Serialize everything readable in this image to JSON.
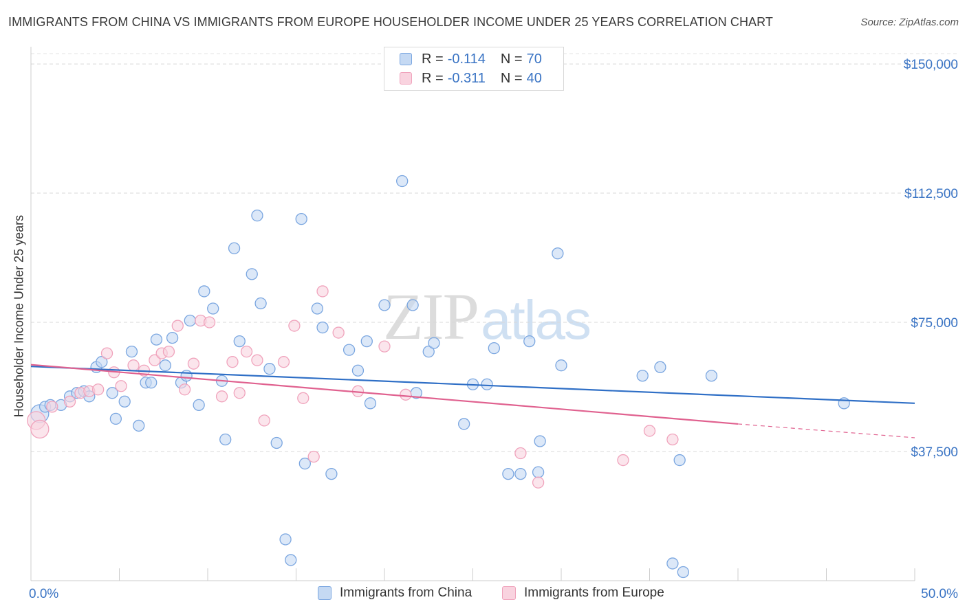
{
  "title": "IMMIGRANTS FROM CHINA VS IMMIGRANTS FROM EUROPE HOUSEHOLDER INCOME UNDER 25 YEARS CORRELATION CHART",
  "source": "Source: ZipAtlas.com",
  "watermark": {
    "zip": "ZIP",
    "atlas": "atlas"
  },
  "colors": {
    "china": "#7aa6e0",
    "china_fill": "#c5d9f3",
    "china_line": "#2f6fc6",
    "europe": "#f0a3bc",
    "europe_fill": "#f9d3df",
    "europe_line": "#e0618f",
    "tick_label": "#3a74c4"
  },
  "legend": {
    "china": {
      "r_label": "R =",
      "r_value": "-0.114",
      "n_label": "N =",
      "n_value": "70"
    },
    "europe": {
      "r_label": "R =",
      "r_value": "-0.311",
      "n_label": "N =",
      "n_value": "40"
    }
  },
  "bottom_legend": {
    "china": "Immigrants from China",
    "europe": "Immigrants from Europe"
  },
  "chart_data": {
    "type": "scatter",
    "title": "IMMIGRANTS FROM CHINA VS IMMIGRANTS FROM EUROPE HOUSEHOLDER INCOME UNDER 25 YEARS CORRELATION CHART",
    "xlabel": "",
    "ylabel": "Householder Income Under 25 years",
    "xlim": [
      0,
      50
    ],
    "ylim": [
      0,
      155000
    ],
    "x_tick_labels": {
      "left": "0.0%",
      "right": "50.0%"
    },
    "y_ticks": [
      37500,
      75000,
      112500,
      150000
    ],
    "y_tick_labels": [
      "$37,500",
      "$75,000",
      "$112,500",
      "$150,000"
    ],
    "grid": "horizontal dashed",
    "legend_position": "top-center",
    "series": [
      {
        "name": "Immigrants from China",
        "color": "#7aa6e0",
        "points": [
          [
            0.5,
            48500
          ],
          [
            0.8,
            50500
          ],
          [
            1.1,
            51000
          ],
          [
            1.7,
            51000
          ],
          [
            2.2,
            53500
          ],
          [
            2.6,
            54500
          ],
          [
            3.0,
            55000
          ],
          [
            3.3,
            53500
          ],
          [
            3.7,
            62000
          ],
          [
            4.0,
            63500
          ],
          [
            4.6,
            54500
          ],
          [
            4.8,
            47000
          ],
          [
            5.3,
            52000
          ],
          [
            5.7,
            66500
          ],
          [
            6.1,
            45000
          ],
          [
            6.5,
            57500
          ],
          [
            6.8,
            57500
          ],
          [
            7.1,
            70000
          ],
          [
            7.6,
            62500
          ],
          [
            8.0,
            70500
          ],
          [
            8.5,
            57500
          ],
          [
            8.8,
            59500
          ],
          [
            9.0,
            75500
          ],
          [
            9.5,
            51000
          ],
          [
            9.8,
            84000
          ],
          [
            10.3,
            79000
          ],
          [
            10.8,
            58000
          ],
          [
            11.0,
            41000
          ],
          [
            11.5,
            96500
          ],
          [
            11.8,
            69500
          ],
          [
            12.5,
            89000
          ],
          [
            12.8,
            106000
          ],
          [
            13.0,
            80500
          ],
          [
            13.5,
            61500
          ],
          [
            13.9,
            40000
          ],
          [
            14.4,
            12000
          ],
          [
            14.7,
            6000
          ],
          [
            15.3,
            105000
          ],
          [
            15.5,
            34000
          ],
          [
            16.2,
            79000
          ],
          [
            16.5,
            73500
          ],
          [
            17.0,
            31000
          ],
          [
            18.0,
            67000
          ],
          [
            18.5,
            61000
          ],
          [
            19.0,
            69500
          ],
          [
            19.2,
            51500
          ],
          [
            20.0,
            80000
          ],
          [
            21.0,
            116000
          ],
          [
            21.6,
            80000
          ],
          [
            21.8,
            54500
          ],
          [
            22.5,
            66500
          ],
          [
            22.8,
            69000
          ],
          [
            24.5,
            45500
          ],
          [
            25.0,
            57000
          ],
          [
            25.8,
            57000
          ],
          [
            26.2,
            67500
          ],
          [
            27.0,
            31000
          ],
          [
            27.7,
            31000
          ],
          [
            28.2,
            69500
          ],
          [
            28.7,
            31500
          ],
          [
            28.8,
            40500
          ],
          [
            29.8,
            95000
          ],
          [
            30.0,
            62500
          ],
          [
            34.6,
            59500
          ],
          [
            35.6,
            62000
          ],
          [
            36.3,
            5000
          ],
          [
            36.7,
            35000
          ],
          [
            36.9,
            2500
          ],
          [
            38.5,
            59500
          ],
          [
            46.0,
            51500
          ]
        ],
        "trend": {
          "start": [
            0,
            62200
          ],
          "end": [
            50,
            51500
          ]
        }
      },
      {
        "name": "Immigrants from Europe",
        "color": "#f0a3bc",
        "points": [
          [
            0.3,
            46500
          ],
          [
            0.5,
            44000
          ],
          [
            1.2,
            50500
          ],
          [
            2.2,
            52000
          ],
          [
            2.8,
            54500
          ],
          [
            3.3,
            55000
          ],
          [
            3.8,
            55500
          ],
          [
            4.3,
            66000
          ],
          [
            4.7,
            60500
          ],
          [
            5.1,
            56500
          ],
          [
            5.8,
            62500
          ],
          [
            6.4,
            61000
          ],
          [
            7.0,
            64000
          ],
          [
            7.4,
            66000
          ],
          [
            7.8,
            66500
          ],
          [
            8.3,
            74000
          ],
          [
            8.7,
            55500
          ],
          [
            9.2,
            63000
          ],
          [
            9.6,
            75500
          ],
          [
            10.1,
            75000
          ],
          [
            10.8,
            53500
          ],
          [
            11.4,
            63500
          ],
          [
            11.8,
            54500
          ],
          [
            12.2,
            66500
          ],
          [
            12.8,
            64000
          ],
          [
            13.2,
            46500
          ],
          [
            14.3,
            63500
          ],
          [
            14.9,
            74000
          ],
          [
            15.4,
            53000
          ],
          [
            16.0,
            36000
          ],
          [
            16.5,
            84000
          ],
          [
            17.4,
            72000
          ],
          [
            18.5,
            55000
          ],
          [
            20.0,
            68000
          ],
          [
            21.2,
            54000
          ],
          [
            27.7,
            37000
          ],
          [
            28.7,
            28500
          ],
          [
            33.5,
            35000
          ],
          [
            35.0,
            43500
          ],
          [
            36.3,
            41000
          ]
        ],
        "trend": {
          "start": [
            0,
            62700
          ],
          "solid_end": [
            40,
            45500
          ],
          "end": [
            50,
            41500
          ]
        }
      }
    ]
  }
}
